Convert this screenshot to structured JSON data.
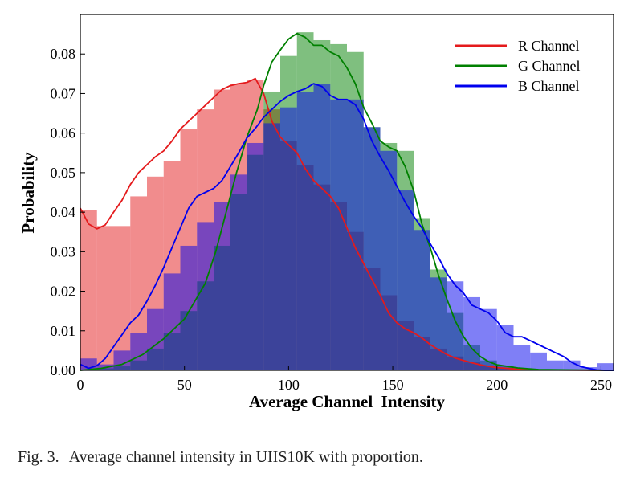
{
  "chart_data": {
    "type": "histogram_with_density",
    "xlabel": "Average Channel  Intensity",
    "ylabel": "Probability",
    "xlim": [
      0,
      256
    ],
    "ylim": [
      0,
      0.09
    ],
    "xticks": [
      0,
      50,
      100,
      150,
      200,
      250
    ],
    "yticks": [
      "0.00",
      "0.01",
      "0.02",
      "0.03",
      "0.04",
      "0.05",
      "0.06",
      "0.07",
      "0.08"
    ],
    "grid": false,
    "legend_position": "top-right",
    "bin_width": 8,
    "bin_starts": [
      0,
      8,
      16,
      24,
      32,
      40,
      48,
      56,
      64,
      72,
      80,
      88,
      96,
      104,
      112,
      120,
      128,
      136,
      144,
      152,
      160,
      168,
      176,
      184,
      192,
      200,
      208,
      216,
      224,
      232,
      240,
      248
    ],
    "series": [
      {
        "name": "R Channel",
        "color": "#e41a1c",
        "hist": [
          0.0405,
          0.0365,
          0.0365,
          0.044,
          0.049,
          0.053,
          0.061,
          0.066,
          0.071,
          0.0725,
          0.0735,
          0.066,
          0.058,
          0.052,
          0.047,
          0.0425,
          0.035,
          0.026,
          0.019,
          0.0125,
          0.0085,
          0.0055,
          0.0035,
          0.002,
          0.0012,
          0.0006,
          0.0003,
          0.0001,
          0.0,
          0.0,
          0.0,
          0.0
        ],
        "curve_x": [
          0,
          4,
          8,
          12,
          16,
          20,
          24,
          28,
          32,
          36,
          40,
          44,
          48,
          52,
          56,
          60,
          64,
          68,
          72,
          76,
          80,
          84,
          88,
          92,
          96,
          100,
          104,
          108,
          112,
          116,
          120,
          124,
          128,
          132,
          136,
          140,
          144,
          148,
          152,
          156,
          160,
          164,
          168,
          172,
          176,
          180,
          184,
          188,
          192,
          196,
          200,
          210,
          220,
          256
        ],
        "curve_y": [
          0.041,
          0.037,
          0.0358,
          0.0368,
          0.04,
          0.043,
          0.047,
          0.05,
          0.052,
          0.054,
          0.0555,
          0.058,
          0.061,
          0.063,
          0.065,
          0.067,
          0.069,
          0.071,
          0.072,
          0.0725,
          0.0728,
          0.0738,
          0.07,
          0.063,
          0.059,
          0.057,
          0.055,
          0.051,
          0.048,
          0.046,
          0.044,
          0.041,
          0.036,
          0.031,
          0.027,
          0.023,
          0.019,
          0.0145,
          0.012,
          0.0105,
          0.0095,
          0.0082,
          0.0065,
          0.0052,
          0.004,
          0.0031,
          0.0025,
          0.0019,
          0.0014,
          0.001,
          0.0007,
          0.0003,
          0.0001,
          0.0
        ]
      },
      {
        "name": "G Channel",
        "color": "#008000",
        "hist": [
          0.0,
          0.0005,
          0.001,
          0.0025,
          0.0055,
          0.0095,
          0.015,
          0.0225,
          0.0315,
          0.0445,
          0.0545,
          0.0705,
          0.0795,
          0.0855,
          0.0835,
          0.0825,
          0.0805,
          0.0615,
          0.0575,
          0.0555,
          0.0385,
          0.0255,
          0.0145,
          0.0065,
          0.0025,
          0.0012,
          0.0005,
          0.0002,
          0.0,
          0.0,
          0.0,
          0.0
        ],
        "curve_x": [
          0,
          10,
          20,
          30,
          40,
          50,
          60,
          65,
          70,
          75,
          80,
          85,
          88,
          92,
          96,
          100,
          104,
          108,
          112,
          116,
          120,
          124,
          128,
          132,
          136,
          140,
          144,
          148,
          152,
          156,
          160,
          164,
          168,
          172,
          176,
          180,
          184,
          188,
          192,
          196,
          200,
          210,
          220,
          256
        ],
        "curve_y": [
          0.0,
          0.0005,
          0.0015,
          0.004,
          0.008,
          0.013,
          0.022,
          0.03,
          0.04,
          0.05,
          0.059,
          0.066,
          0.072,
          0.078,
          0.081,
          0.0838,
          0.0852,
          0.0842,
          0.0822,
          0.0822,
          0.0805,
          0.0795,
          0.0765,
          0.0725,
          0.0665,
          0.0625,
          0.058,
          0.0565,
          0.0555,
          0.0515,
          0.0455,
          0.037,
          0.031,
          0.024,
          0.018,
          0.0125,
          0.0085,
          0.0055,
          0.0035,
          0.0022,
          0.0014,
          0.0006,
          0.0002,
          0.0
        ]
      },
      {
        "name": "B Channel",
        "color": "#0000ee",
        "hist": [
          0.003,
          0.0015,
          0.005,
          0.0095,
          0.0155,
          0.0245,
          0.0315,
          0.0375,
          0.0425,
          0.0495,
          0.0575,
          0.0625,
          0.0665,
          0.0705,
          0.0725,
          0.0685,
          0.0685,
          0.0615,
          0.0555,
          0.0455,
          0.0355,
          0.0235,
          0.0225,
          0.0185,
          0.0155,
          0.0115,
          0.0065,
          0.0045,
          0.0025,
          0.0025,
          0.0008,
          0.0018
        ],
        "curve_x": [
          0,
          4,
          8,
          12,
          16,
          20,
          24,
          28,
          32,
          36,
          40,
          44,
          48,
          52,
          56,
          60,
          64,
          68,
          72,
          76,
          80,
          84,
          88,
          92,
          96,
          100,
          104,
          108,
          112,
          116,
          120,
          124,
          128,
          132,
          136,
          140,
          144,
          148,
          152,
          156,
          160,
          164,
          168,
          172,
          176,
          180,
          184,
          188,
          192,
          196,
          200,
          204,
          208,
          212,
          216,
          220,
          224,
          228,
          232,
          236,
          240,
          244,
          248,
          252,
          256
        ],
        "curve_y": [
          0.0015,
          0.0005,
          0.0012,
          0.003,
          0.006,
          0.009,
          0.012,
          0.014,
          0.0175,
          0.0215,
          0.026,
          0.031,
          0.036,
          0.041,
          0.044,
          0.045,
          0.046,
          0.048,
          0.0515,
          0.055,
          0.0588,
          0.0612,
          0.064,
          0.066,
          0.068,
          0.0695,
          0.0705,
          0.0712,
          0.0725,
          0.0718,
          0.0695,
          0.0685,
          0.0685,
          0.0672,
          0.0635,
          0.058,
          0.054,
          0.0505,
          0.0465,
          0.0425,
          0.039,
          0.036,
          0.032,
          0.0285,
          0.0245,
          0.0215,
          0.0195,
          0.0165,
          0.0155,
          0.0145,
          0.0125,
          0.0095,
          0.0085,
          0.0085,
          0.0075,
          0.0065,
          0.0055,
          0.0045,
          0.0035,
          0.002,
          0.001,
          0.0005,
          0.0001,
          0.0,
          0.0
        ]
      }
    ]
  },
  "caption": {
    "label": "Fig. 3.",
    "text": "Average channel intensity in UIIS10K with proportion."
  }
}
